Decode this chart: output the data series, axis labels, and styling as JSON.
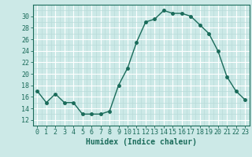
{
  "x": [
    0,
    1,
    2,
    3,
    4,
    5,
    6,
    7,
    8,
    9,
    10,
    11,
    12,
    13,
    14,
    15,
    16,
    17,
    18,
    19,
    20,
    21,
    22,
    23
  ],
  "y": [
    17,
    15,
    16.5,
    15,
    15,
    13,
    13,
    13,
    13.5,
    18,
    21,
    25.5,
    29,
    29.5,
    31,
    30.5,
    30.5,
    30,
    28.5,
    27,
    24,
    19.5,
    17,
    15.5
  ],
  "line_color": "#1a6b5a",
  "marker": "o",
  "markersize": 2.5,
  "linewidth": 1.0,
  "bg_color": "#cce9e7",
  "grid_major_color": "#ffffff",
  "grid_minor_color": "#b8dbd9",
  "xlabel": "Humidex (Indice chaleur)",
  "xlim": [
    -0.5,
    23.5
  ],
  "ylim": [
    11,
    32
  ],
  "yticks": [
    12,
    14,
    16,
    18,
    20,
    22,
    24,
    26,
    28,
    30
  ],
  "xticks": [
    0,
    1,
    2,
    3,
    4,
    5,
    6,
    7,
    8,
    9,
    10,
    11,
    12,
    13,
    14,
    15,
    16,
    17,
    18,
    19,
    20,
    21,
    22,
    23
  ],
  "tick_color": "#1a6b5a",
  "label_color": "#1a6b5a",
  "xlabel_fontsize": 7,
  "tick_fontsize": 6
}
